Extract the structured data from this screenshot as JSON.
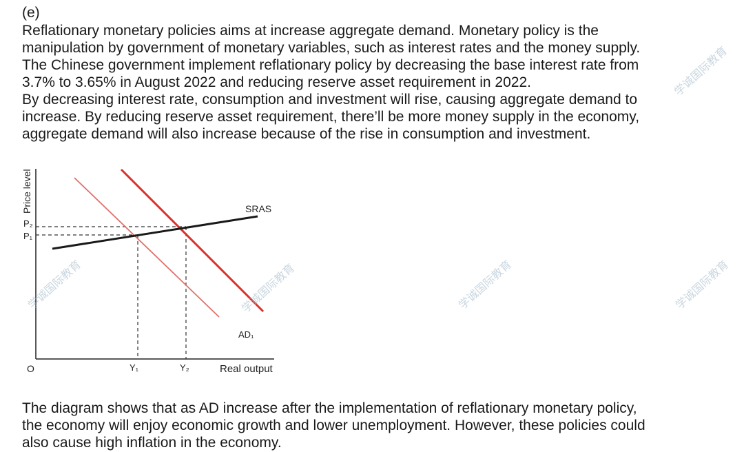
{
  "section_label": "(e)",
  "paragraphs": {
    "intro": "Reflationary monetary policies aims at increase aggregate demand. Monetary policy is the\nmanipulation by government of monetary variables, such as interest rates and the money supply.\nThe Chinese government implement reflationary policy by decreasing the base interest rate from\n3.7% to 3.65% in August 2022 and reducing reserve asset requirement in 2022.\nBy decreasing interest rate, consumption and investment will rise, causing aggregate demand to\nincrease. By reducing reserve asset requirement, there’ll be more money supply in the economy,\naggregate demand will also increase because of the rise in consumption and investment.",
    "conclusion": "The diagram shows that as AD increase after the implementation of reflationary monetary policy,\nthe economy will enjoy economic growth and lower unemployment. However, these policies could\nalso cause high inflation in the economy."
  },
  "diagram": {
    "y_axis_label": "Price level",
    "x_axis_label": "Real output",
    "origin_label": "O",
    "sras_label": "SRAS",
    "ad1_label": "AD₁",
    "p1_label": "P₁",
    "p2_label": "P₂",
    "y1_label": "Y₁",
    "y2_label": "Y₂",
    "colors": {
      "sras": "#1a1a1a",
      "ad1": "#e0706a",
      "ad2": "#d9322b",
      "guides": "#333333"
    }
  },
  "watermark": "学诚国际教育"
}
